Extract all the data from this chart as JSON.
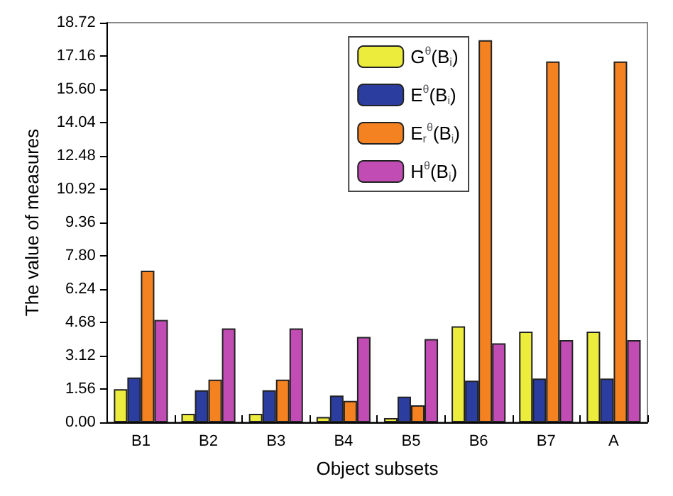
{
  "chart_data": {
    "type": "bar",
    "xlabel": "Object subsets",
    "ylabel": "The value of measures",
    "categories": [
      "B1",
      "B2",
      "B3",
      "B4",
      "B5",
      "B6",
      "B7",
      "A"
    ],
    "series": [
      {
        "name": "G$^{θ}$(B$_{i}$)",
        "color": "#ecec3c",
        "values": [
          1.55,
          0.4,
          0.4,
          0.25,
          0.2,
          4.5,
          4.25,
          4.25
        ]
      },
      {
        "name": "E$^{θ}$(B$_{i}$)",
        "color": "#2b3d9e",
        "values": [
          2.1,
          1.5,
          1.5,
          1.25,
          1.2,
          1.95,
          2.05,
          2.05
        ]
      },
      {
        "name": "E$_{r}$$^{θ}$(B$_{i}$)",
        "color": "#f58220",
        "values": [
          7.1,
          2.0,
          2.0,
          1.0,
          0.8,
          17.9,
          16.9,
          16.9
        ]
      },
      {
        "name": "H$^{θ}$(B$_{i}$)",
        "color": "#c04cb4",
        "values": [
          4.8,
          4.4,
          4.4,
          4.0,
          3.9,
          3.7,
          3.85,
          3.85
        ]
      }
    ],
    "ylim": [
      0,
      18.72
    ],
    "yticks": [
      {
        "value": 0,
        "label": "0.00"
      },
      1.56,
      3.12,
      4.68,
      6.24,
      {
        "value": 7.8,
        "label": "7.80"
      },
      9.36,
      10.92,
      12.48,
      14.04,
      {
        "value": 15.6,
        "label": "15.60"
      },
      17.16,
      18.72
    ],
    "grid": false,
    "legend": "top right"
  }
}
